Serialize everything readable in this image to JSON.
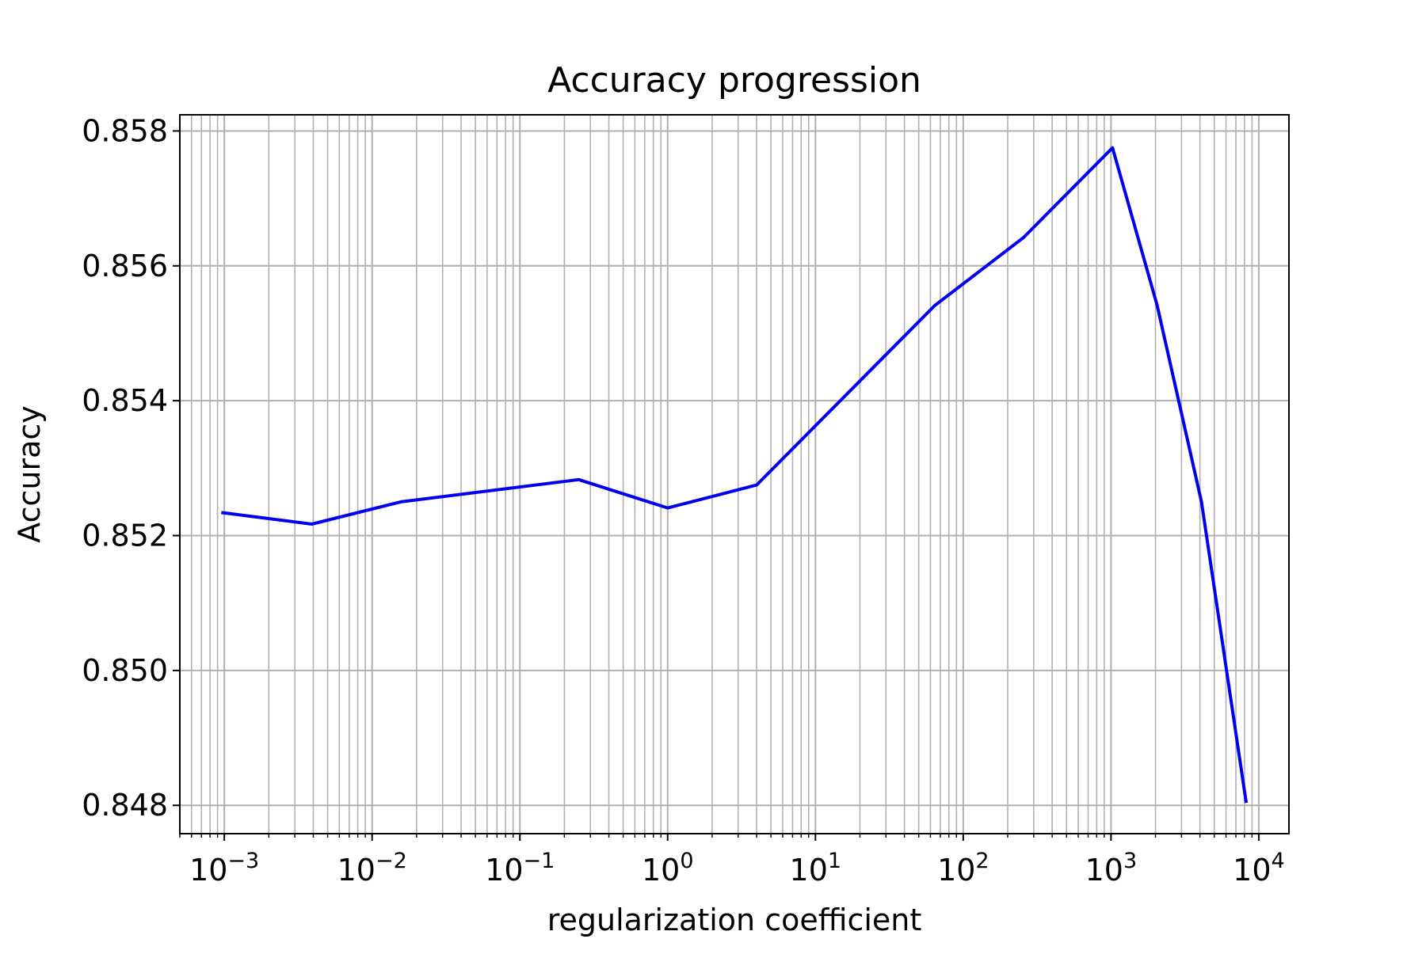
{
  "chart_data": {
    "type": "line",
    "title": "Accuracy progression",
    "xlabel": "regularization coefficient",
    "ylabel": "Accuracy",
    "x_scale": "log",
    "xlim": [
      0.0005,
      16000
    ],
    "ylim": [
      0.84758,
      0.85824
    ],
    "grid": "both (major and minor)",
    "x_ticks": [
      {
        "value": 0.001,
        "base": "10",
        "exp": "−3"
      },
      {
        "value": 0.01,
        "base": "10",
        "exp": "−2"
      },
      {
        "value": 0.1,
        "base": "10",
        "exp": "−1"
      },
      {
        "value": 1,
        "base": "10",
        "exp": "0"
      },
      {
        "value": 10,
        "base": "10",
        "exp": "1"
      },
      {
        "value": 100,
        "base": "10",
        "exp": "2"
      },
      {
        "value": 1000,
        "base": "10",
        "exp": "3"
      },
      {
        "value": 10000,
        "base": "10",
        "exp": "4"
      }
    ],
    "y_ticks": [
      {
        "value": 0.848,
        "label": "0.848"
      },
      {
        "value": 0.85,
        "label": "0.850"
      },
      {
        "value": 0.852,
        "label": "0.852"
      },
      {
        "value": 0.854,
        "label": "0.854"
      },
      {
        "value": 0.856,
        "label": "0.856"
      },
      {
        "value": 0.858,
        "label": "0.858"
      }
    ],
    "series": [
      {
        "color": "#0000ee",
        "x": [
          0.000977,
          0.003906,
          0.015625,
          0.25,
          1,
          4,
          64,
          256,
          1024,
          2048,
          4096,
          8192
        ],
        "y": [
          0.85234,
          0.85217,
          0.8525,
          0.85283,
          0.85241,
          0.85275,
          0.85541,
          0.85642,
          0.85775,
          0.85542,
          0.8525,
          0.84806
        ]
      }
    ]
  }
}
